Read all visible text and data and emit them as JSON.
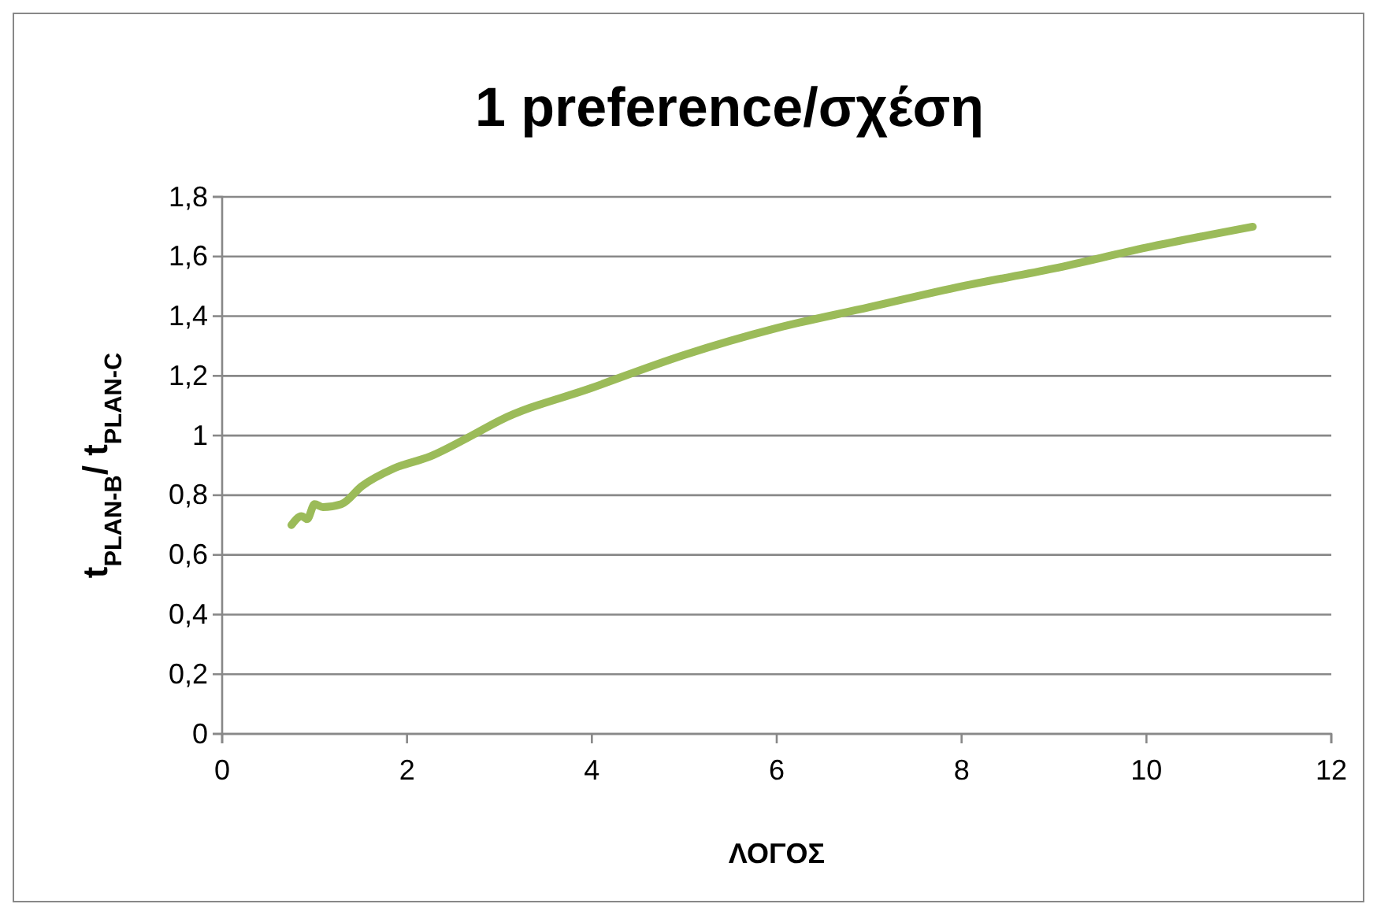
{
  "chart_data": {
    "type": "line",
    "title": "1 preference/σχέση",
    "xlabel": "ΛΟΓΟΣ",
    "ylabel": "t$_{PLAN-B}$/ t$_{PLAN-C}$",
    "x": [
      0.75,
      0.86,
      0.92,
      1.0,
      1.09,
      1.29,
      1.51,
      1.86,
      2.25,
      2.7,
      3,
      4,
      5,
      6,
      7,
      8,
      9,
      10,
      11.15
    ],
    "series": [
      {
        "color": "#9bbb59",
        "values": [
          0.7,
          0.73,
          0.72,
          0.77,
          0.76,
          0.77,
          0.83,
          0.89,
          0.93,
          1.0,
          1.05,
          1.16,
          1.27,
          1.36,
          1.43,
          1.5,
          1.56,
          1.63,
          1.7
        ]
      }
    ],
    "xlim": [
      0,
      12
    ],
    "xticks": [
      0,
      2,
      4,
      6,
      8,
      10,
      12
    ],
    "ylim": [
      0,
      1.8
    ],
    "yticks": [
      0,
      {
        "value": 0.2,
        "label": "0,2"
      },
      {
        "value": 0.4,
        "label": "0,4"
      },
      {
        "value": 0.6,
        "label": "0,6"
      },
      {
        "value": 0.8,
        "label": "0,8"
      },
      1,
      {
        "value": 1.2,
        "label": "1,2"
      },
      {
        "value": 1.4,
        "label": "1,4"
      },
      {
        "value": 1.6,
        "label": "1,6"
      },
      {
        "value": 1.8,
        "label": "1,8"
      }
    ],
    "grid": "y",
    "marker": "none",
    "line_style": "solid"
  }
}
